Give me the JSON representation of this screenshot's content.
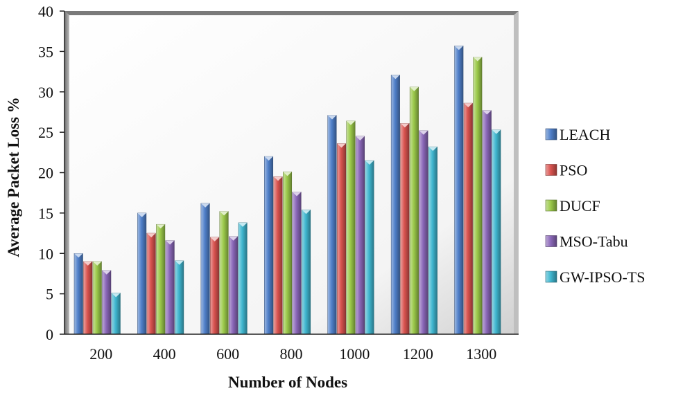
{
  "chart_data": {
    "type": "bar",
    "title": "",
    "xlabel": "Number of Nodes",
    "ylabel": "Average Packet Loss %",
    "categories": [
      "200",
      "400",
      "600",
      "800",
      "1000",
      "1200",
      "1300"
    ],
    "ylim": [
      0,
      40
    ],
    "yticks": [
      0,
      5,
      10,
      15,
      20,
      25,
      30,
      35,
      40
    ],
    "grid": false,
    "legend_position": "right",
    "series": [
      {
        "name": "LEACH",
        "color": "#4f7fc9",
        "values": [
          10,
          15,
          16.2,
          22,
          27.1,
          32.1,
          35.7
        ]
      },
      {
        "name": "PSO",
        "color": "#d9534f",
        "values": [
          9,
          12.5,
          12,
          19.5,
          23.6,
          26.1,
          28.6
        ]
      },
      {
        "name": "DUCF",
        "color": "#9bc94a",
        "values": [
          9,
          13.6,
          15.2,
          20.1,
          26.4,
          30.6,
          34.3
        ]
      },
      {
        "name": "MSO-Tabu",
        "color": "#8a67b8",
        "values": [
          7.9,
          11.6,
          12.1,
          17.6,
          24.5,
          25.2,
          27.7
        ]
      },
      {
        "name": "GW-IPSO-TS",
        "color": "#3fb6cf",
        "values": [
          5.1,
          9.1,
          13.8,
          15.4,
          21.5,
          23.2,
          25.3
        ]
      }
    ]
  }
}
